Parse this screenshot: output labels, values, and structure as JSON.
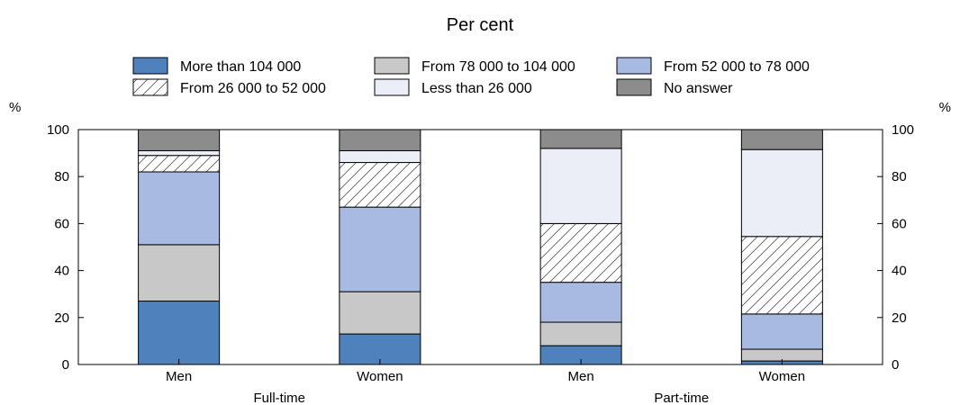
{
  "chart_data": {
    "type": "bar",
    "stacked": true,
    "title": "Per cent",
    "ylabel_left": "%",
    "ylabel_right": "%",
    "ylim": [
      0,
      100
    ],
    "yticks": [
      0,
      20,
      40,
      60,
      80,
      100
    ],
    "grid": false,
    "legend_position": "top",
    "categories": [
      "Men",
      "Women",
      "Men",
      "Women"
    ],
    "groups": [
      {
        "label": "Full-time",
        "categories": [
          0,
          1
        ]
      },
      {
        "label": "Part-time",
        "categories": [
          2,
          3
        ]
      }
    ],
    "series": [
      {
        "name": "More than 104 000",
        "color": "#4f81bd",
        "pattern": "solid",
        "values": [
          27,
          13,
          8,
          1.5
        ]
      },
      {
        "name": "From 78 000 to 104 000",
        "color": "#c8c8c8",
        "pattern": "solid",
        "values": [
          24,
          18,
          10,
          5
        ]
      },
      {
        "name": "From 52 000 to 78 000",
        "color": "#a9bae2",
        "pattern": "solid",
        "values": [
          31,
          36,
          17,
          15
        ]
      },
      {
        "name": "From 26 000 to 52 000",
        "color": "#ffffff",
        "pattern": "hatch",
        "values": [
          7,
          19,
          25,
          33
        ]
      },
      {
        "name": "Less than 26 000",
        "color": "#ebeef7",
        "pattern": "solid",
        "values": [
          2,
          5,
          32,
          37
        ]
      },
      {
        "name": "No answer",
        "color": "#8c8c8c",
        "pattern": "solid",
        "values": [
          9,
          9,
          8,
          8.5
        ]
      }
    ]
  }
}
